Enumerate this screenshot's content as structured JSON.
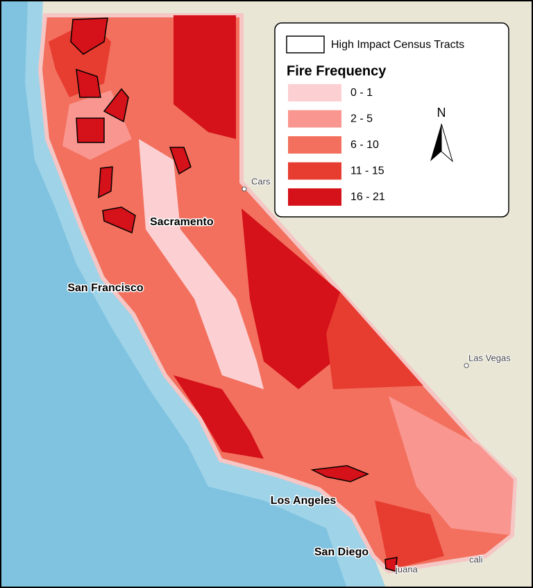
{
  "legend": {
    "outline_label": "High Impact Census Tracts",
    "title": "Fire Frequency",
    "classes": [
      {
        "label": "0 - 1",
        "color": "#fcd0d3"
      },
      {
        "label": "2 - 5",
        "color": "#f9968f"
      },
      {
        "label": "6 - 10",
        "color": "#f2705d"
      },
      {
        "label": "11 - 15",
        "color": "#e73c30"
      },
      {
        "label": "16 - 21",
        "color": "#d5111a"
      }
    ]
  },
  "north_arrow": "N",
  "cities": [
    "Sacramento",
    "San Francisco",
    "Los Angeles",
    "San Diego"
  ],
  "basemap_labels": [
    "Cars",
    "Las Vegas",
    "juana",
    "cali"
  ]
}
